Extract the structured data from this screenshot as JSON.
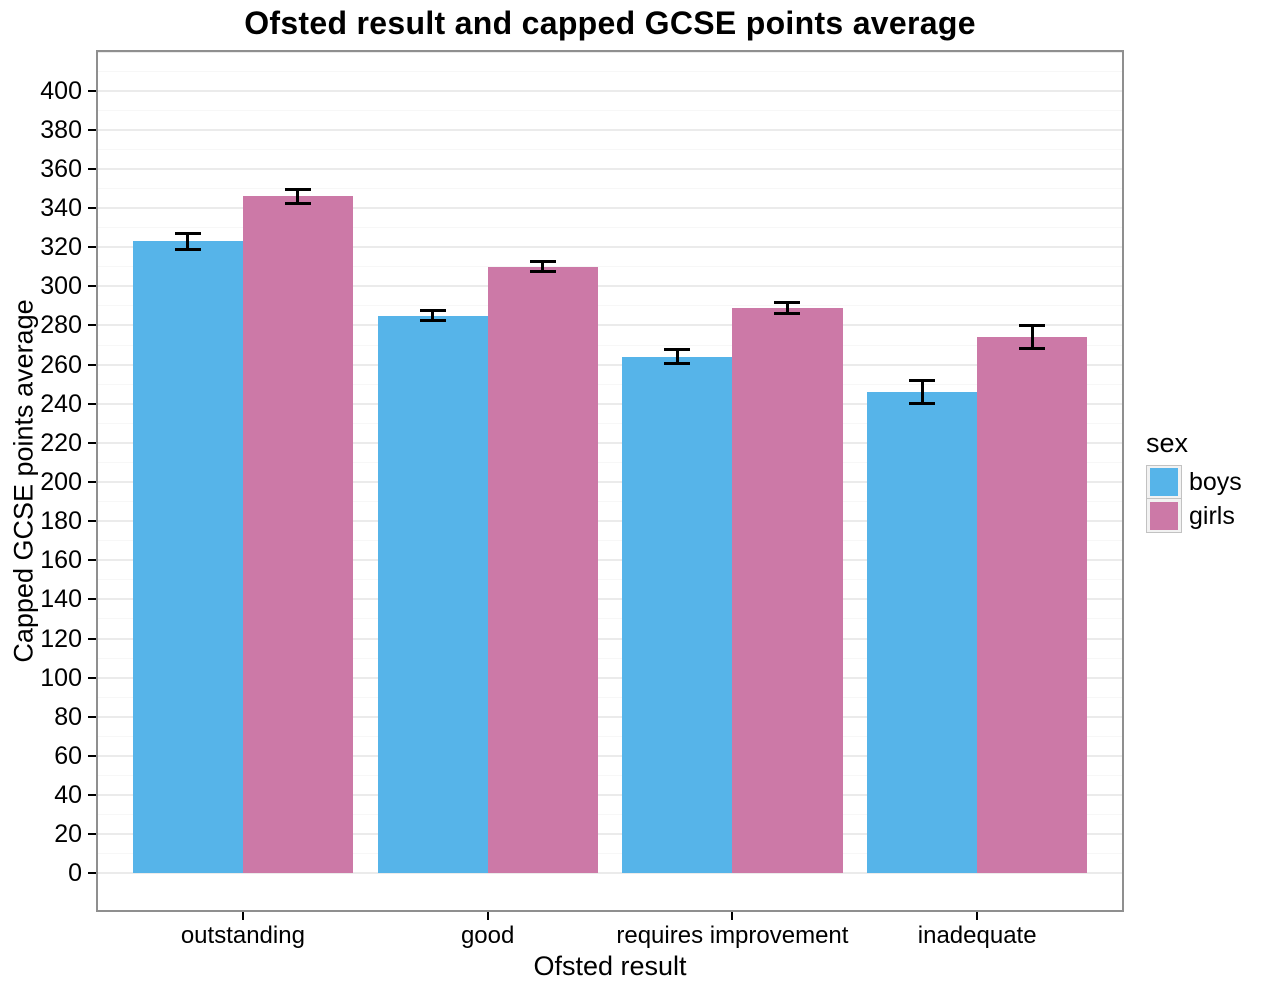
{
  "chart_data": {
    "type": "bar",
    "title": "Ofsted result and capped GCSE points average",
    "xlabel": "Ofsted result",
    "ylabel": "Capped GCSE points average",
    "categories": [
      "outstanding",
      "good",
      "requires improvement",
      "inadequate"
    ],
    "series": [
      {
        "name": "boys",
        "color": "#56B4E9",
        "values": [
          323,
          285,
          264,
          246
        ],
        "error_margins": [
          4,
          2.5,
          3.5,
          6
        ]
      },
      {
        "name": "girls",
        "color": "#CC79A7",
        "values": [
          346,
          310,
          289,
          274
        ],
        "error_margins": [
          3.5,
          2.5,
          3,
          6
        ]
      }
    ],
    "legend": {
      "title": "sex",
      "position": "right"
    },
    "y_axis": {
      "min": 0,
      "max": 400,
      "tick_step": 20,
      "minor_gridlines": true
    },
    "x_axis_type": "categorical",
    "grid": true,
    "bar_layout": "dodged",
    "error_bar_color": "#000000",
    "panel_border_color": "#8f8f8f",
    "gridline_color": "#ebebeb"
  }
}
